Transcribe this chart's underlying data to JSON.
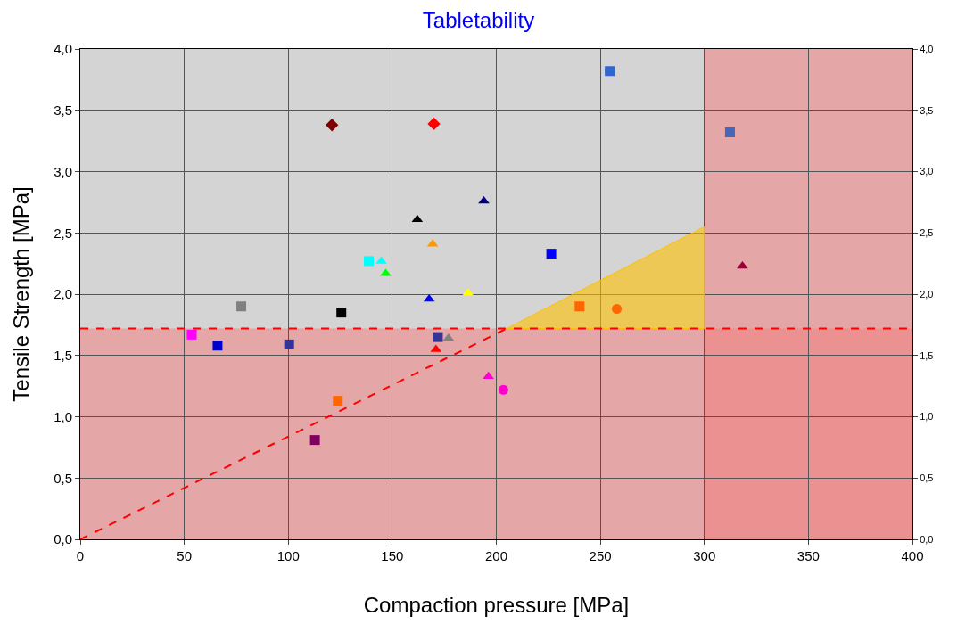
{
  "chart_data": {
    "type": "scatter",
    "title": "Tabletability",
    "xlabel": "Compaction pressure [MPa]",
    "ylabel": "Tensile Strength [MPa]",
    "xlim": [
      0,
      400
    ],
    "xticks": [
      0,
      50,
      100,
      150,
      200,
      250,
      300,
      350,
      400
    ],
    "ylim": [
      0,
      4
    ],
    "yticks": [
      {
        "value": 0,
        "label": "0,0"
      },
      {
        "value": 0.5,
        "label": "0,5"
      },
      {
        "value": 1,
        "label": "1,0"
      },
      {
        "value": 1.5,
        "label": "1,5"
      },
      {
        "value": 2,
        "label": "2,0"
      },
      {
        "value": 2.5,
        "label": "2,5"
      },
      {
        "value": 3,
        "label": "3,0"
      },
      {
        "value": 3.5,
        "label": "3,5"
      },
      {
        "value": 4,
        "label": "4,0"
      }
    ],
    "y2lim": [
      0,
      4
    ],
    "y2ticks": [
      {
        "value": 0,
        "label": "0,0"
      },
      {
        "value": 0.5,
        "label": "0,5"
      },
      {
        "value": 1,
        "label": "1,0"
      },
      {
        "value": 1.5,
        "label": "1,5"
      },
      {
        "value": 2,
        "label": "2,0"
      },
      {
        "value": 2.5,
        "label": "2,5"
      },
      {
        "value": 3,
        "label": "3,0"
      },
      {
        "value": 3.5,
        "label": "3,5"
      },
      {
        "value": 4,
        "label": "4,0"
      }
    ],
    "grid": true,
    "bands": [
      {
        "axis": "y",
        "from": 0,
        "to": 1.72,
        "color": "#f08080"
      },
      {
        "axis": "x",
        "from": 300,
        "to": 400,
        "color": "#f08080"
      }
    ],
    "ref_lines": [
      {
        "axis": "y",
        "value": 1.72,
        "color": "#ff0000",
        "line_style": "dashed"
      }
    ],
    "series": [
      {
        "type": "area",
        "color": "#ffc000",
        "x": [
          205,
          300,
          300,
          205
        ],
        "values": [
          1.72,
          1.72,
          2.55,
          1.72
        ]
      },
      {
        "type": "line",
        "color": "#ff0000",
        "line_style": "dashed",
        "marker": "none",
        "x": [
          0,
          205
        ],
        "values": [
          0,
          1.72
        ]
      },
      {
        "marker": "diamond",
        "x": [
          121,
          170
        ],
        "values": [
          3.38,
          3.39
        ],
        "colors": [
          "#800000",
          "#ff0000"
        ]
      },
      {
        "marker": "square",
        "x": [
          254.5,
          226.4,
          138.7,
          77.4,
          125.5,
          240,
          53.6,
          66,
          100.4,
          171.9,
          123.8,
          112.8,
          312.3
        ],
        "values": [
          3.82,
          2.33,
          2.27,
          1.9,
          1.85,
          1.9,
          1.67,
          1.58,
          1.59,
          1.65,
          1.13,
          0.81,
          3.32
        ],
        "colors": [
          "#3366cc",
          "#0000ff",
          "#00ffff",
          "#808080",
          "#000000",
          "#ff6600",
          "#ff00ff",
          "#0000cc",
          "#333399",
          "#333399",
          "#ff6600",
          "#800060",
          "#4466bb"
        ]
      },
      {
        "marker": "triangle",
        "x": [
          194,
          162,
          169.4,
          144.7,
          146.8,
          186.4,
          167.7,
          177,
          171,
          196.2,
          318.3
        ],
        "values": [
          2.76,
          2.61,
          2.41,
          2.27,
          2.17,
          2.01,
          1.96,
          1.64,
          1.55,
          1.33,
          2.23
        ],
        "colors": [
          "#000080",
          "#000000",
          "#ff9900",
          "#00ffff",
          "#00ff00",
          "#ffff00",
          "#0000ff",
          "#808080",
          "#ff0000",
          "#ff00cc",
          "#990033"
        ]
      },
      {
        "marker": "circle",
        "x": [
          257.9,
          203.4
        ],
        "values": [
          1.88,
          1.22
        ],
        "colors": [
          "#ff6600",
          "#ff00cc"
        ]
      }
    ]
  }
}
